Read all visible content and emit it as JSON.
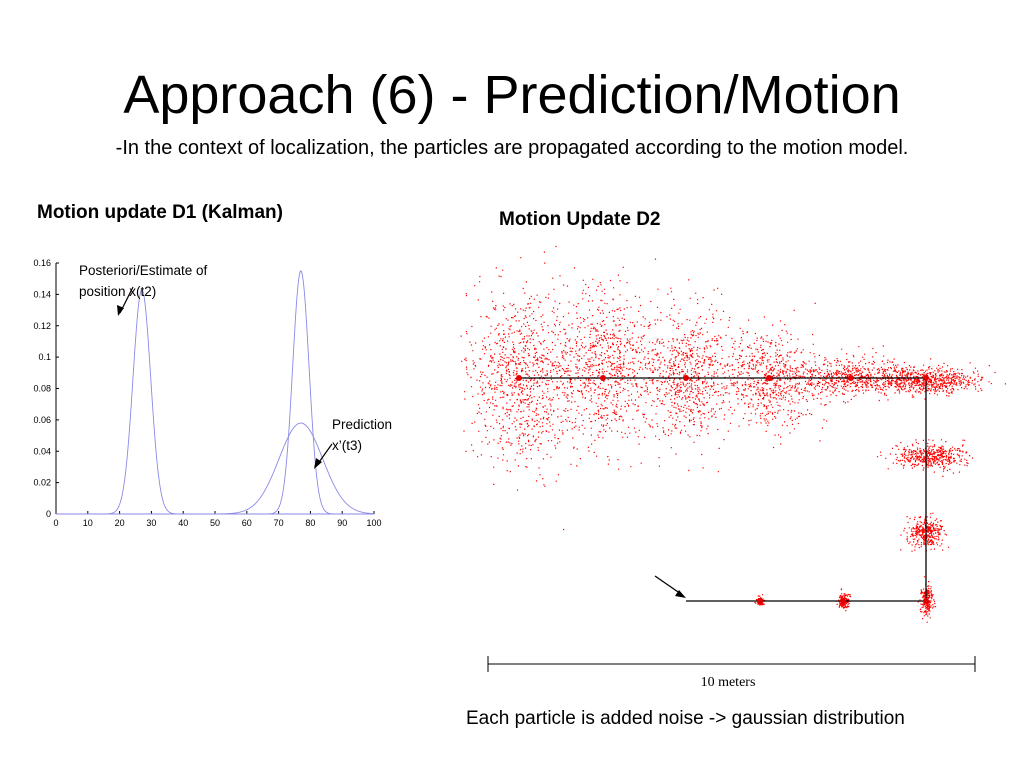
{
  "slide": {
    "title": "Approach (6) - Prediction/Motion",
    "subtitle": "-In the context of localization, the particles are propagated according to the motion model.",
    "caption": "Each particle is added noise -> gaussian distribution"
  },
  "chart_data": [
    {
      "type": "line",
      "title": "Motion update D1 (Kalman)",
      "xlabel": "",
      "ylabel": "",
      "xlim": [
        0,
        100
      ],
      "ylim": [
        0,
        0.16
      ],
      "xticks": [
        0,
        10,
        20,
        30,
        40,
        50,
        60,
        70,
        80,
        90,
        100
      ],
      "yticks": [
        0,
        0.02,
        0.04,
        0.06,
        0.08,
        0.1,
        0.12,
        0.14,
        0.16
      ],
      "line_color": "#8a8ae6",
      "series": [
        {
          "mean": 27,
          "peak": 0.143
        },
        {
          "mean": 77,
          "peak": 0.155
        },
        {
          "mean": 77,
          "peak": 0.058
        }
      ],
      "annotations": [
        {
          "text_lines": [
            "Posteriori/Estimate of",
            "position x(t2)"
          ]
        },
        {
          "text_lines": [
            "Prediction",
            "x’(t3)"
          ]
        }
      ]
    },
    {
      "type": "scatter",
      "title": "Motion Update D2",
      "point_color": "#ff0000",
      "scale_label": "10 meters"
    }
  ]
}
